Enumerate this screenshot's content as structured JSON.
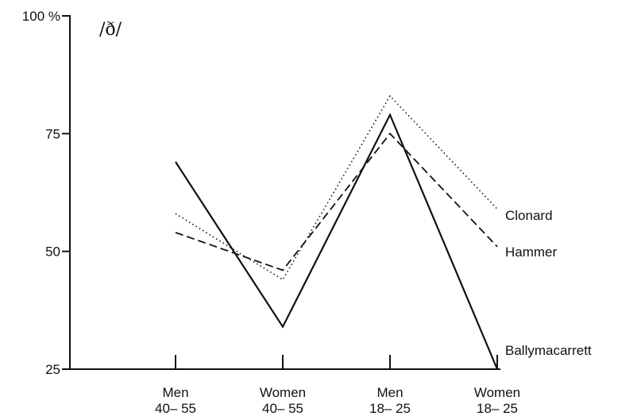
{
  "chart_data": {
    "type": "line",
    "title": "",
    "xlabel": "",
    "ylabel": "/ð/",
    "ylim": [
      25,
      100
    ],
    "yticks": [
      {
        "value": 25,
        "label": "25"
      },
      {
        "value": 50,
        "label": "50"
      },
      {
        "value": 75,
        "label": "75"
      },
      {
        "value": 100,
        "label": "100 %"
      }
    ],
    "categories": [
      {
        "line1": "Men",
        "line2": "40– 55"
      },
      {
        "line1": "Women",
        "line2": "40– 55"
      },
      {
        "line1": "Men",
        "line2": "18– 25"
      },
      {
        "line1": "Women",
        "line2": "18– 25"
      }
    ],
    "series": [
      {
        "name": "Ballymacarrett",
        "style": "solid",
        "values": [
          69,
          34,
          79,
          25
        ]
      },
      {
        "name": "Hammer",
        "style": "dashed",
        "values": [
          54,
          46,
          75,
          51
        ]
      },
      {
        "name": "Clonard",
        "style": "dotted",
        "values": [
          58,
          44,
          83,
          59
        ]
      }
    ],
    "grid": false,
    "legend": "direct labels at right end of lines"
  }
}
